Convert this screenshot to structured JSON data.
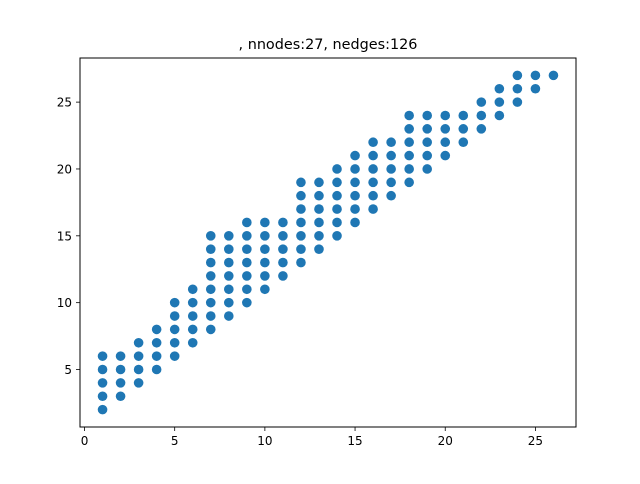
{
  "chart_data": {
    "type": "scatter",
    "title": ", nnodes:27, nedges:126",
    "xlabel": "",
    "ylabel": "",
    "xlim": [
      -0.25,
      27.25
    ],
    "ylim": [
      0.7,
      28.3
    ],
    "xticks": [
      0,
      5,
      10,
      15,
      20,
      25
    ],
    "yticks": [
      5,
      10,
      15,
      20,
      25
    ],
    "grid": false,
    "legend": "none",
    "marker_color": "#1f77b4",
    "series": [
      {
        "points": [
          [
            1,
            2
          ],
          [
            1,
            3
          ],
          [
            1,
            4
          ],
          [
            1,
            5
          ],
          [
            1,
            6
          ],
          [
            2,
            3
          ],
          [
            2,
            4
          ],
          [
            2,
            5
          ],
          [
            2,
            6
          ],
          [
            3,
            4
          ],
          [
            3,
            5
          ],
          [
            3,
            6
          ],
          [
            3,
            7
          ],
          [
            4,
            5
          ],
          [
            4,
            6
          ],
          [
            4,
            7
          ],
          [
            4,
            8
          ],
          [
            5,
            6
          ],
          [
            5,
            7
          ],
          [
            5,
            8
          ],
          [
            5,
            9
          ],
          [
            5,
            10
          ],
          [
            6,
            7
          ],
          [
            6,
            8
          ],
          [
            6,
            9
          ],
          [
            6,
            10
          ],
          [
            6,
            11
          ],
          [
            7,
            8
          ],
          [
            7,
            9
          ],
          [
            7,
            10
          ],
          [
            7,
            11
          ],
          [
            7,
            12
          ],
          [
            7,
            13
          ],
          [
            7,
            14
          ],
          [
            7,
            15
          ],
          [
            8,
            9
          ],
          [
            8,
            10
          ],
          [
            8,
            11
          ],
          [
            8,
            12
          ],
          [
            8,
            13
          ],
          [
            8,
            14
          ],
          [
            8,
            15
          ],
          [
            9,
            10
          ],
          [
            9,
            11
          ],
          [
            9,
            12
          ],
          [
            9,
            13
          ],
          [
            9,
            14
          ],
          [
            9,
            15
          ],
          [
            9,
            16
          ],
          [
            10,
            11
          ],
          [
            10,
            12
          ],
          [
            10,
            13
          ],
          [
            10,
            14
          ],
          [
            10,
            15
          ],
          [
            10,
            16
          ],
          [
            11,
            12
          ],
          [
            11,
            13
          ],
          [
            11,
            14
          ],
          [
            11,
            15
          ],
          [
            11,
            16
          ],
          [
            12,
            13
          ],
          [
            12,
            14
          ],
          [
            12,
            15
          ],
          [
            12,
            16
          ],
          [
            12,
            17
          ],
          [
            12,
            18
          ],
          [
            12,
            19
          ],
          [
            13,
            14
          ],
          [
            13,
            15
          ],
          [
            13,
            16
          ],
          [
            13,
            17
          ],
          [
            13,
            18
          ],
          [
            13,
            19
          ],
          [
            14,
            15
          ],
          [
            14,
            16
          ],
          [
            14,
            17
          ],
          [
            14,
            18
          ],
          [
            14,
            19
          ],
          [
            14,
            20
          ],
          [
            15,
            16
          ],
          [
            15,
            17
          ],
          [
            15,
            18
          ],
          [
            15,
            19
          ],
          [
            15,
            20
          ],
          [
            15,
            21
          ],
          [
            16,
            17
          ],
          [
            16,
            18
          ],
          [
            16,
            19
          ],
          [
            16,
            20
          ],
          [
            16,
            21
          ],
          [
            16,
            22
          ],
          [
            17,
            18
          ],
          [
            17,
            19
          ],
          [
            17,
            20
          ],
          [
            17,
            21
          ],
          [
            17,
            22
          ],
          [
            18,
            19
          ],
          [
            18,
            20
          ],
          [
            18,
            21
          ],
          [
            18,
            22
          ],
          [
            18,
            23
          ],
          [
            18,
            24
          ],
          [
            19,
            20
          ],
          [
            19,
            21
          ],
          [
            19,
            22
          ],
          [
            19,
            23
          ],
          [
            19,
            24
          ],
          [
            20,
            21
          ],
          [
            20,
            22
          ],
          [
            20,
            23
          ],
          [
            20,
            24
          ],
          [
            21,
            22
          ],
          [
            21,
            23
          ],
          [
            21,
            24
          ],
          [
            22,
            23
          ],
          [
            22,
            24
          ],
          [
            22,
            25
          ],
          [
            23,
            24
          ],
          [
            23,
            25
          ],
          [
            23,
            26
          ],
          [
            24,
            25
          ],
          [
            24,
            26
          ],
          [
            24,
            27
          ],
          [
            25,
            26
          ],
          [
            25,
            27
          ],
          [
            26,
            27
          ]
        ]
      }
    ]
  }
}
